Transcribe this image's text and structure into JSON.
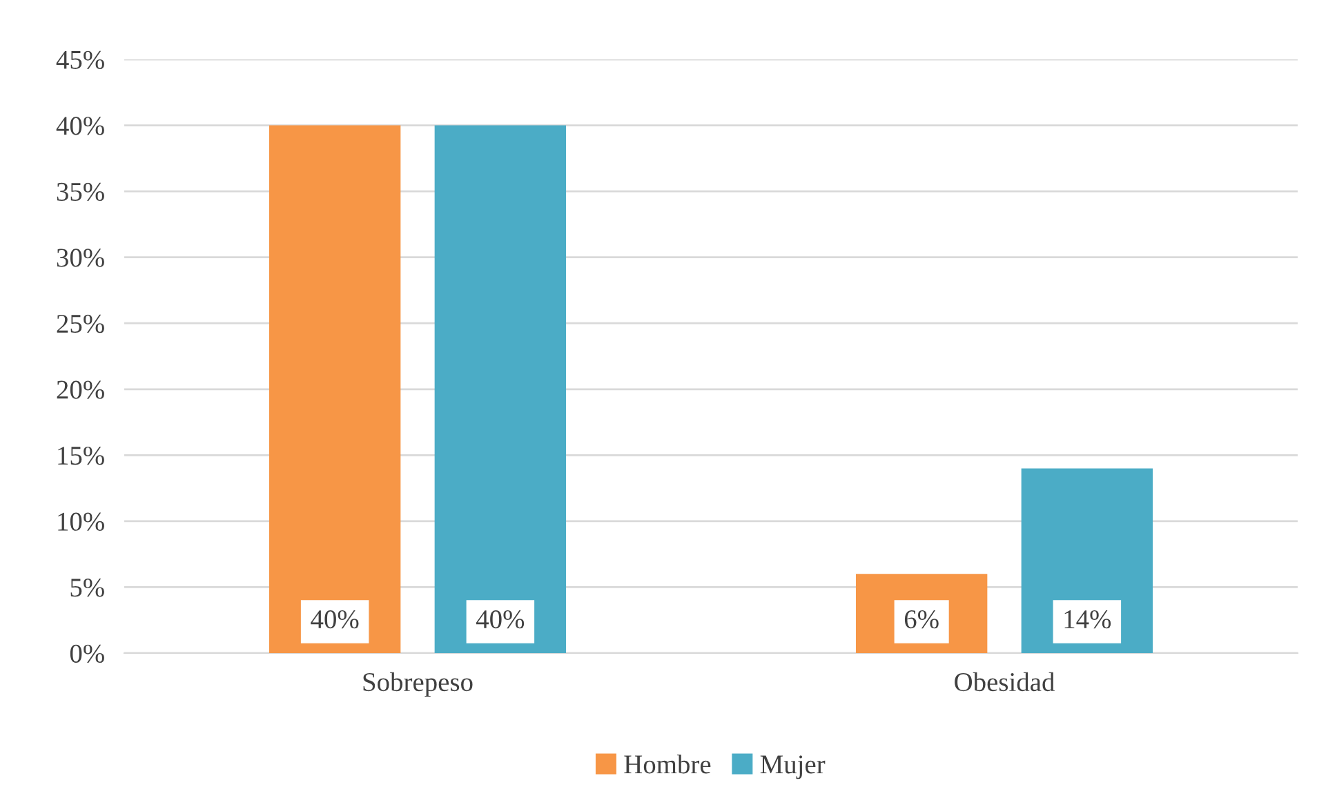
{
  "chart_data": {
    "type": "bar",
    "categories": [
      "Sobrepeso",
      "Obesidad"
    ],
    "series": [
      {
        "name": "Hombre",
        "color": "#f79646",
        "values": [
          40,
          6
        ],
        "value_labels": [
          "40%",
          "6%"
        ]
      },
      {
        "name": "Mujer",
        "color": "#4bacc6",
        "values": [
          40,
          14
        ],
        "value_labels": [
          "40%",
          "14%"
        ]
      }
    ],
    "ylim": [
      0,
      45
    ],
    "yticks": [
      {
        "value": 0,
        "label": "0%"
      },
      {
        "value": 5,
        "label": "5%"
      },
      {
        "value": 10,
        "label": "10%"
      },
      {
        "value": 15,
        "label": "15%"
      },
      {
        "value": 20,
        "label": "20%"
      },
      {
        "value": 25,
        "label": "25%"
      },
      {
        "value": 30,
        "label": "30%"
      },
      {
        "value": 35,
        "label": "35%"
      },
      {
        "value": 40,
        "label": "40%"
      },
      {
        "value": 45,
        "label": "45%"
      }
    ],
    "grid": "y",
    "legend": "bottom"
  }
}
